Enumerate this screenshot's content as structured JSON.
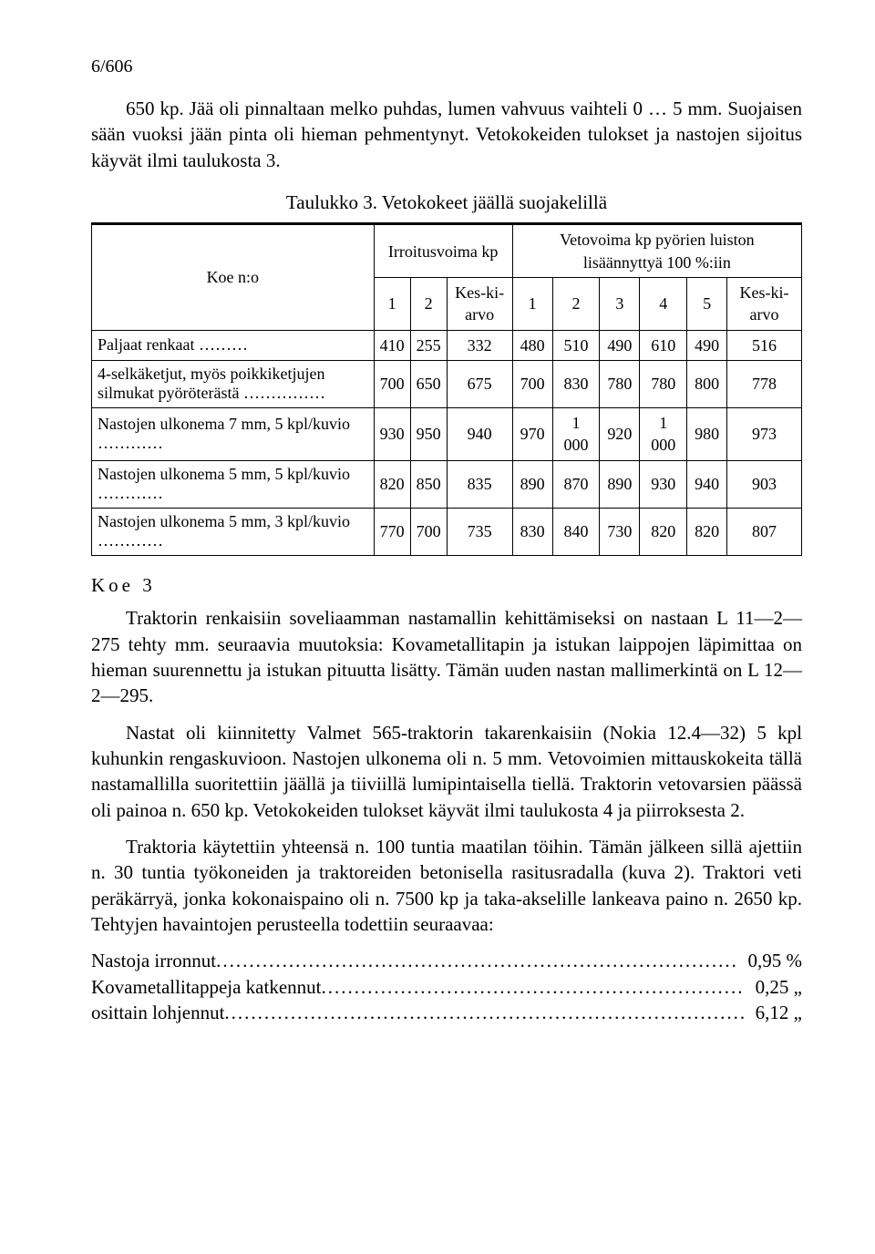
{
  "page_number": "6/606",
  "para1": "650 kp. Jää oli pinnaltaan melko puhdas, lumen vahvuus vaihteli 0 … 5 mm. Suojaisen sään vuoksi jään pinta oli hieman pehmentynyt. Vetokokeiden tulokset ja nastojen sijoitus käyvät ilmi taulukosta 3.",
  "table_caption": "Taulukko 3. Vetokokeet jäällä suojakelillä",
  "table": {
    "head1_a": "Irroitusvoima kp",
    "head1_b": "Vetovoima kp pyörien luiston lisäännyttyä 100 %:iin",
    "koe_label": "Koe n:o",
    "cols_a": [
      "1",
      "2",
      "Kes-ki-arvo"
    ],
    "cols_b": [
      "1",
      "2",
      "3",
      "4",
      "5",
      "Kes-ki-arvo"
    ],
    "rows": [
      {
        "label": "Paljaat renkaat ………",
        "a": [
          "410",
          "255",
          "332"
        ],
        "b": [
          "480",
          "510",
          "490",
          "610",
          "490",
          "516"
        ]
      },
      {
        "label": "4-selkäketjut, myös poikkiketjujen silmukat pyöröterästä ……………",
        "a": [
          "700",
          "650",
          "675"
        ],
        "b": [
          "700",
          "830",
          "780",
          "780",
          "800",
          "778"
        ]
      },
      {
        "label": "Nastojen ulkonema 7 mm, 5 kpl/kuvio …………",
        "a": [
          "930",
          "950",
          "940"
        ],
        "b": [
          "970",
          "1 000",
          "920",
          "1 000",
          "980",
          "973"
        ]
      },
      {
        "label": "Nastojen ulkonema 5 mm, 5 kpl/kuvio …………",
        "a": [
          "820",
          "850",
          "835"
        ],
        "b": [
          "890",
          "870",
          "890",
          "930",
          "940",
          "903"
        ]
      },
      {
        "label": "Nastojen ulkonema 5 mm, 3 kpl/kuvio …………",
        "a": [
          "770",
          "700",
          "735"
        ],
        "b": [
          "830",
          "840",
          "730",
          "820",
          "820",
          "807"
        ]
      }
    ]
  },
  "section_title": "Koe 3",
  "para2": "Traktorin renkaisiin soveliaamman nastamallin kehittämiseksi on nastaan L 11—2—275 tehty mm. seuraavia muutoksia: Kovametallitapin ja istukan laippojen läpimittaa on hieman suurennettu ja istukan pituutta lisätty. Tämän uuden nastan mallimerkintä on L 12—2—295.",
  "para3": "Nastat oli kiinnitetty Valmet 565-traktorin takarenkaisiin (Nokia 12.4—32) 5 kpl kuhunkin rengaskuvioon. Nastojen ulkonema oli n. 5 mm. Vetovoimien mittauskokeita tällä nastamallilla suoritettiin jäällä ja tiiviillä lumipintaisella tiellä. Traktorin vetovarsien päässä oli painoa n. 650 kp. Vetokokeiden tulokset käyvät ilmi taulukosta 4 ja piirroksesta 2.",
  "para4": "Traktoria käytettiin yhteensä n. 100 tuntia maatilan töihin. Tämän jälkeen sillä ajettiin n. 30 tuntia työkoneiden ja traktoreiden betonisella rasitusradalla (kuva 2). Traktori veti peräkärryä, jonka kokonaispaino oli n. 7500 kp ja taka-akselille lankeava paino n. 2650 kp. Tehtyjen havaintojen perusteella todettiin seuraavaa:",
  "summary": [
    {
      "label": "Nastoja irronnut",
      "value": "0,95 %"
    },
    {
      "label": "Kovametallitappeja katkennut",
      "value": "0,25  „"
    },
    {
      "label": "osittain lohjennut",
      "value": "6,12  „"
    }
  ]
}
